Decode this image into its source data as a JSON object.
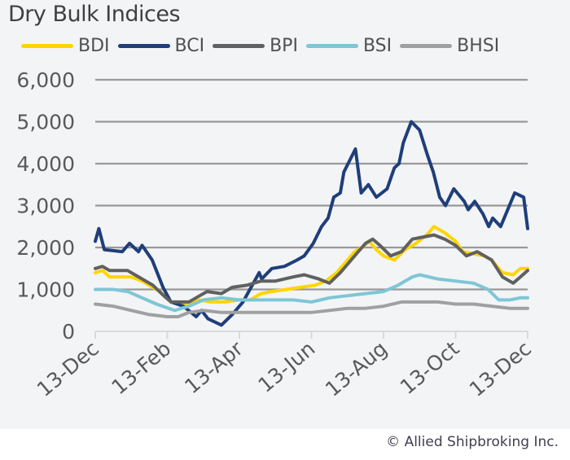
{
  "chart_data": {
    "type": "line",
    "title": "Dry Bulk Indices",
    "xlabel": "",
    "ylabel": "",
    "ylim": [
      0,
      6000
    ],
    "yticks": [
      0,
      1000,
      2000,
      3000,
      4000,
      5000,
      6000
    ],
    "ytick_labels": [
      "0",
      "1,000",
      "2,000",
      "3,000",
      "4,000",
      "5,000",
      "6,000"
    ],
    "x_unit": "months since 13-Dec",
    "xlim": [
      0,
      12
    ],
    "xticks": [
      0,
      2,
      4,
      6,
      8,
      10,
      12
    ],
    "xtick_labels": [
      "13-Dec",
      "13-Feb",
      "13-Apr",
      "13-Jun",
      "13-Aug",
      "13-Oct",
      "13-Dec"
    ],
    "grid": "horizontal",
    "legend_position": "top",
    "series": [
      {
        "name": "BDI",
        "color": "#ffd500",
        "points": [
          [
            0,
            1400
          ],
          [
            0.2,
            1450
          ],
          [
            0.4,
            1300
          ],
          [
            1,
            1300
          ],
          [
            1.3,
            1200
          ],
          [
            1.5,
            1100
          ],
          [
            1.8,
            950
          ],
          [
            2.1,
            700
          ],
          [
            2.5,
            650
          ],
          [
            2.9,
            750
          ],
          [
            3.2,
            700
          ],
          [
            3.6,
            700
          ],
          [
            4,
            750
          ],
          [
            4.3,
            750
          ],
          [
            4.6,
            900
          ],
          [
            4.9,
            950
          ],
          [
            5.3,
            1000
          ],
          [
            5.7,
            1050
          ],
          [
            6.1,
            1100
          ],
          [
            6.4,
            1200
          ],
          [
            6.7,
            1400
          ],
          [
            7,
            1700
          ],
          [
            7.2,
            1900
          ],
          [
            7.4,
            2000
          ],
          [
            7.6,
            2150
          ],
          [
            7.8,
            1950
          ],
          [
            8,
            1800
          ],
          [
            8.3,
            1700
          ],
          [
            8.6,
            1950
          ],
          [
            8.9,
            2100
          ],
          [
            9.2,
            2300
          ],
          [
            9.4,
            2500
          ],
          [
            9.7,
            2350
          ],
          [
            10,
            2150
          ],
          [
            10.2,
            1900
          ],
          [
            10.5,
            1850
          ],
          [
            10.8,
            1800
          ],
          [
            11,
            1700
          ],
          [
            11.3,
            1400
          ],
          [
            11.6,
            1350
          ],
          [
            11.8,
            1500
          ],
          [
            12,
            1500
          ]
        ]
      },
      {
        "name": "BCI",
        "color": "#1f3e7a",
        "points": [
          [
            0,
            2150
          ],
          [
            0.1,
            2450
          ],
          [
            0.25,
            1950
          ],
          [
            0.75,
            1900
          ],
          [
            0.95,
            2100
          ],
          [
            1.2,
            1900
          ],
          [
            1.3,
            2050
          ],
          [
            1.58,
            1700
          ],
          [
            1.88,
            1050
          ],
          [
            2.1,
            700
          ],
          [
            2.45,
            600
          ],
          [
            2.8,
            350
          ],
          [
            2.95,
            500
          ],
          [
            3.13,
            300
          ],
          [
            3.5,
            150
          ],
          [
            3.8,
            400
          ],
          [
            4.1,
            700
          ],
          [
            4.55,
            1400
          ],
          [
            4.62,
            1250
          ],
          [
            4.9,
            1500
          ],
          [
            5.25,
            1550
          ],
          [
            5.6,
            1700
          ],
          [
            5.8,
            1800
          ],
          [
            6.05,
            2100
          ],
          [
            6.28,
            2500
          ],
          [
            6.46,
            2700
          ],
          [
            6.62,
            3200
          ],
          [
            6.8,
            3300
          ],
          [
            6.9,
            3800
          ],
          [
            7.22,
            4350
          ],
          [
            7.38,
            3300
          ],
          [
            7.58,
            3500
          ],
          [
            7.8,
            3200
          ],
          [
            8.1,
            3400
          ],
          [
            8.3,
            3900
          ],
          [
            8.43,
            4000
          ],
          [
            8.55,
            4500
          ],
          [
            8.77,
            5000
          ],
          [
            9,
            4800
          ],
          [
            9.22,
            4200
          ],
          [
            9.38,
            3800
          ],
          [
            9.56,
            3200
          ],
          [
            9.72,
            3000
          ],
          [
            9.95,
            3400
          ],
          [
            10.24,
            3100
          ],
          [
            10.35,
            2900
          ],
          [
            10.53,
            3100
          ],
          [
            10.76,
            2800
          ],
          [
            10.92,
            2500
          ],
          [
            11.03,
            2700
          ],
          [
            11.25,
            2500
          ],
          [
            11.64,
            3300
          ],
          [
            11.89,
            3200
          ],
          [
            12,
            2450
          ]
        ]
      },
      {
        "name": "BPI",
        "color": "#606060",
        "points": [
          [
            0,
            1500
          ],
          [
            0.2,
            1550
          ],
          [
            0.4,
            1450
          ],
          [
            0.9,
            1450
          ],
          [
            1.3,
            1250
          ],
          [
            1.6,
            1100
          ],
          [
            1.9,
            850
          ],
          [
            2.1,
            700
          ],
          [
            2.6,
            700
          ],
          [
            2.9,
            850
          ],
          [
            3.1,
            950
          ],
          [
            3.5,
            900
          ],
          [
            3.8,
            1050
          ],
          [
            4.2,
            1100
          ],
          [
            4.6,
            1200
          ],
          [
            5,
            1200
          ],
          [
            5.5,
            1300
          ],
          [
            5.8,
            1350
          ],
          [
            6.2,
            1250
          ],
          [
            6.5,
            1150
          ],
          [
            6.8,
            1400
          ],
          [
            7,
            1600
          ],
          [
            7.3,
            1900
          ],
          [
            7.5,
            2100
          ],
          [
            7.7,
            2200
          ],
          [
            7.9,
            2050
          ],
          [
            8.2,
            1800
          ],
          [
            8.5,
            1900
          ],
          [
            8.8,
            2200
          ],
          [
            9.1,
            2250
          ],
          [
            9.4,
            2300
          ],
          [
            9.7,
            2200
          ],
          [
            10,
            2050
          ],
          [
            10.3,
            1800
          ],
          [
            10.6,
            1900
          ],
          [
            11,
            1700
          ],
          [
            11.3,
            1300
          ],
          [
            11.6,
            1150
          ],
          [
            11.8,
            1300
          ],
          [
            12,
            1450
          ]
        ]
      },
      {
        "name": "BSI",
        "color": "#7ec6d6",
        "points": [
          [
            0,
            1000
          ],
          [
            0.5,
            1000
          ],
          [
            0.9,
            950
          ],
          [
            1.3,
            800
          ],
          [
            1.7,
            650
          ],
          [
            2.2,
            500
          ],
          [
            2.6,
            600
          ],
          [
            3,
            750
          ],
          [
            3.5,
            800
          ],
          [
            4,
            750
          ],
          [
            4.6,
            750
          ],
          [
            5,
            750
          ],
          [
            5.5,
            750
          ],
          [
            6,
            700
          ],
          [
            6.5,
            800
          ],
          [
            7,
            850
          ],
          [
            7.5,
            900
          ],
          [
            8,
            950
          ],
          [
            8.4,
            1100
          ],
          [
            8.8,
            1300
          ],
          [
            9,
            1350
          ],
          [
            9.5,
            1250
          ],
          [
            10,
            1200
          ],
          [
            10.5,
            1150
          ],
          [
            10.9,
            1000
          ],
          [
            11.2,
            750
          ],
          [
            11.5,
            750
          ],
          [
            11.8,
            800
          ],
          [
            12,
            800
          ]
        ]
      },
      {
        "name": "BHSI",
        "color": "#a0a0a0",
        "points": [
          [
            0,
            650
          ],
          [
            0.5,
            600
          ],
          [
            1,
            500
          ],
          [
            1.5,
            400
          ],
          [
            2,
            350
          ],
          [
            2.3,
            350
          ],
          [
            2.6,
            450
          ],
          [
            3,
            500
          ],
          [
            3.5,
            450
          ],
          [
            4,
            450
          ],
          [
            5,
            450
          ],
          [
            5.5,
            450
          ],
          [
            6,
            450
          ],
          [
            6.5,
            500
          ],
          [
            7,
            550
          ],
          [
            7.5,
            550
          ],
          [
            8,
            600
          ],
          [
            8.5,
            700
          ],
          [
            9,
            700
          ],
          [
            9.5,
            700
          ],
          [
            10,
            650
          ],
          [
            10.5,
            650
          ],
          [
            11,
            600
          ],
          [
            11.5,
            550
          ],
          [
            12,
            550
          ]
        ]
      }
    ]
  },
  "legend": [
    {
      "label": "BDI",
      "color": "#ffd500"
    },
    {
      "label": "BCI",
      "color": "#1f3e7a"
    },
    {
      "label": "BPI",
      "color": "#606060"
    },
    {
      "label": "BSI",
      "color": "#7ec6d6"
    },
    {
      "label": "BHSI",
      "color": "#a0a0a0"
    }
  ],
  "footer": "© Allied Shipbroking Inc."
}
